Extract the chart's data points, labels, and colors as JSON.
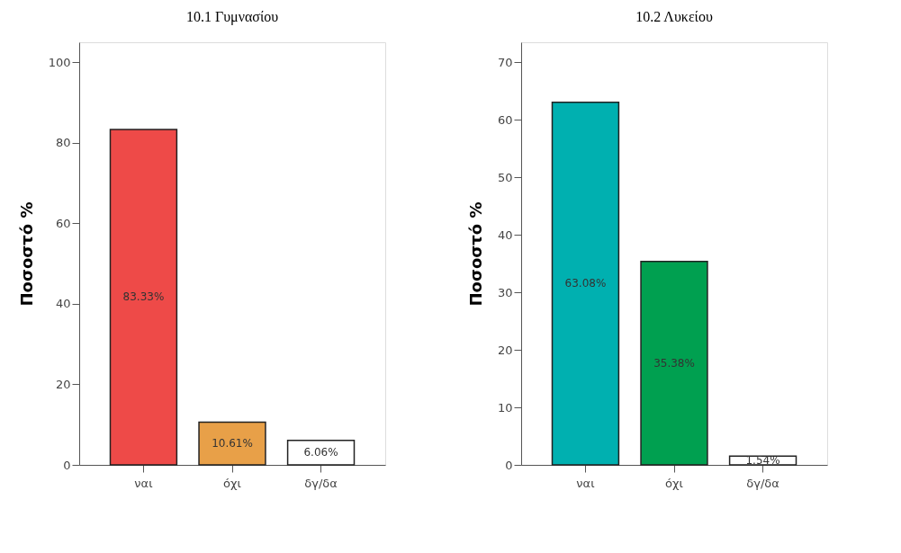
{
  "chart_data": [
    {
      "type": "bar",
      "title": "10.1 Γυμνασίου",
      "ylabel": "Ποσοστό %",
      "categories": [
        "ναι",
        "όχι",
        "δγ/δα"
      ],
      "values": [
        83.33,
        10.61,
        6.06
      ],
      "colors": [
        "#ee4a48",
        "#e8a048",
        "#ffffff"
      ],
      "value_labels": [
        "83.33%",
        "10.61%",
        "6.06%"
      ],
      "ylim": [
        0,
        105
      ],
      "yticks": [
        0,
        20,
        40,
        60,
        80,
        100
      ],
      "grid": false
    },
    {
      "type": "bar",
      "title": "10.2 Λυκείου",
      "ylabel": "Ποσοστό %",
      "categories": [
        "ναι",
        "όχι",
        "δγ/δα"
      ],
      "values": [
        63.08,
        35.38,
        1.54
      ],
      "colors": [
        "#00b0b0",
        "#00a050",
        "#ffffff"
      ],
      "value_labels": [
        "63.08%",
        "35.38%",
        "1.54%"
      ],
      "ylim": [
        0,
        73.5
      ],
      "yticks": [
        0,
        10,
        20,
        30,
        40,
        50,
        60,
        70
      ],
      "grid": false
    }
  ]
}
